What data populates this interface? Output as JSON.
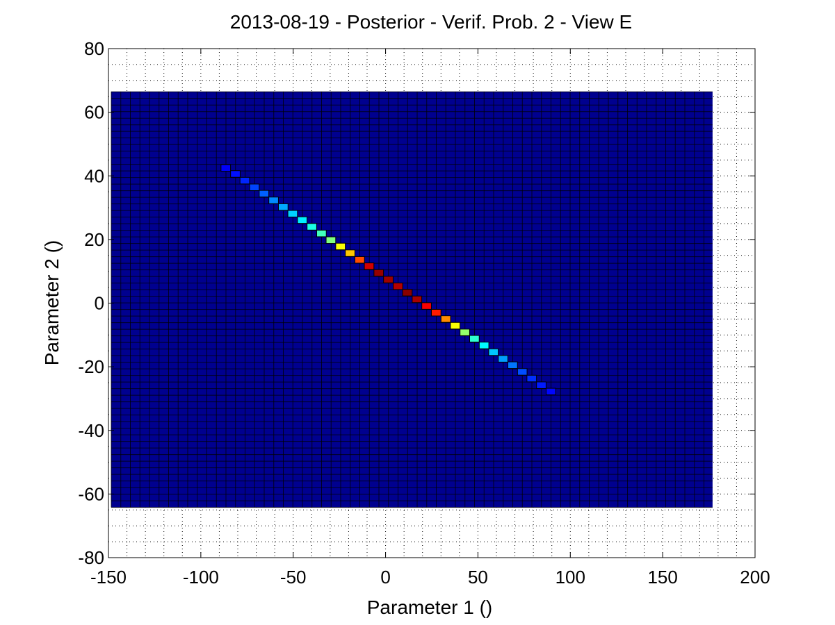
{
  "chart_data": {
    "type": "heatmap",
    "title": "2013-08-19 - Posterior - Verif. Prob. 2 - View E",
    "xlabel": "Parameter 1 ()",
    "ylabel": "Parameter 2 ()",
    "xlim": [
      -150,
      200
    ],
    "ylim": [
      -80,
      80
    ],
    "xticks": [
      "-150",
      "-100",
      "-50",
      "0",
      "50",
      "100",
      "150",
      "200"
    ],
    "yticks": [
      "80",
      "60",
      "40",
      "20",
      "0",
      "-20",
      "-40",
      "-60",
      "-80"
    ],
    "xtick_values": [
      -150,
      -100,
      -50,
      0,
      50,
      100,
      150,
      200
    ],
    "ytick_values": [
      80,
      60,
      40,
      20,
      0,
      -20,
      -40,
      -60,
      -80
    ],
    "grid": true,
    "colormap": "jet",
    "background_color": "#00008f",
    "cell_edge_color": "#000000",
    "region": {
      "x": [
        -148.5,
        177
      ],
      "y": [
        -64.2,
        66.5
      ]
    },
    "cells": {
      "dx": 5.175,
      "dy": 2.0734
    },
    "ridge": [
      {
        "x": -86.5,
        "y": 42.5,
        "v": 0.12
      },
      {
        "x": -81.3,
        "y": 40.6,
        "v": 0.14
      },
      {
        "x": -76.2,
        "y": 38.5,
        "v": 0.16
      },
      {
        "x": -71.0,
        "y": 36.4,
        "v": 0.19
      },
      {
        "x": -65.8,
        "y": 34.4,
        "v": 0.22
      },
      {
        "x": -60.6,
        "y": 32.3,
        "v": 0.26
      },
      {
        "x": -55.4,
        "y": 30.2,
        "v": 0.29
      },
      {
        "x": -50.3,
        "y": 28.1,
        "v": 0.33
      },
      {
        "x": -45.1,
        "y": 26.1,
        "v": 0.36
      },
      {
        "x": -39.9,
        "y": 24.0,
        "v": 0.4
      },
      {
        "x": -34.7,
        "y": 21.9,
        "v": 0.44
      },
      {
        "x": -29.6,
        "y": 19.8,
        "v": 0.5
      },
      {
        "x": -24.4,
        "y": 17.8,
        "v": 0.62
      },
      {
        "x": -19.2,
        "y": 15.7,
        "v": 0.68
      },
      {
        "x": -14.0,
        "y": 13.6,
        "v": 0.8
      },
      {
        "x": -8.9,
        "y": 11.6,
        "v": 0.92
      },
      {
        "x": -3.7,
        "y": 9.5,
        "v": 0.98
      },
      {
        "x": 1.5,
        "y": 7.4,
        "v": 0.97
      },
      {
        "x": 6.7,
        "y": 5.3,
        "v": 0.95
      },
      {
        "x": 11.8,
        "y": 3.3,
        "v": 0.99
      },
      {
        "x": 17.0,
        "y": 1.2,
        "v": 0.96
      },
      {
        "x": 22.2,
        "y": -0.9,
        "v": 0.88
      },
      {
        "x": 27.4,
        "y": -3.0,
        "v": 0.85
      },
      {
        "x": 32.6,
        "y": -5.0,
        "v": 0.74
      },
      {
        "x": 37.7,
        "y": -7.1,
        "v": 0.62
      },
      {
        "x": 42.9,
        "y": -9.2,
        "v": 0.52
      },
      {
        "x": 48.1,
        "y": -11.2,
        "v": 0.42
      },
      {
        "x": 53.3,
        "y": -13.3,
        "v": 0.37
      },
      {
        "x": 58.4,
        "y": -15.4,
        "v": 0.32
      },
      {
        "x": 63.6,
        "y": -17.5,
        "v": 0.28
      },
      {
        "x": 68.8,
        "y": -19.5,
        "v": 0.24
      },
      {
        "x": 74.0,
        "y": -21.6,
        "v": 0.2
      },
      {
        "x": 79.1,
        "y": -23.7,
        "v": 0.17
      },
      {
        "x": 84.3,
        "y": -25.8,
        "v": 0.15
      },
      {
        "x": 89.5,
        "y": -27.8,
        "v": 0.13
      }
    ]
  }
}
